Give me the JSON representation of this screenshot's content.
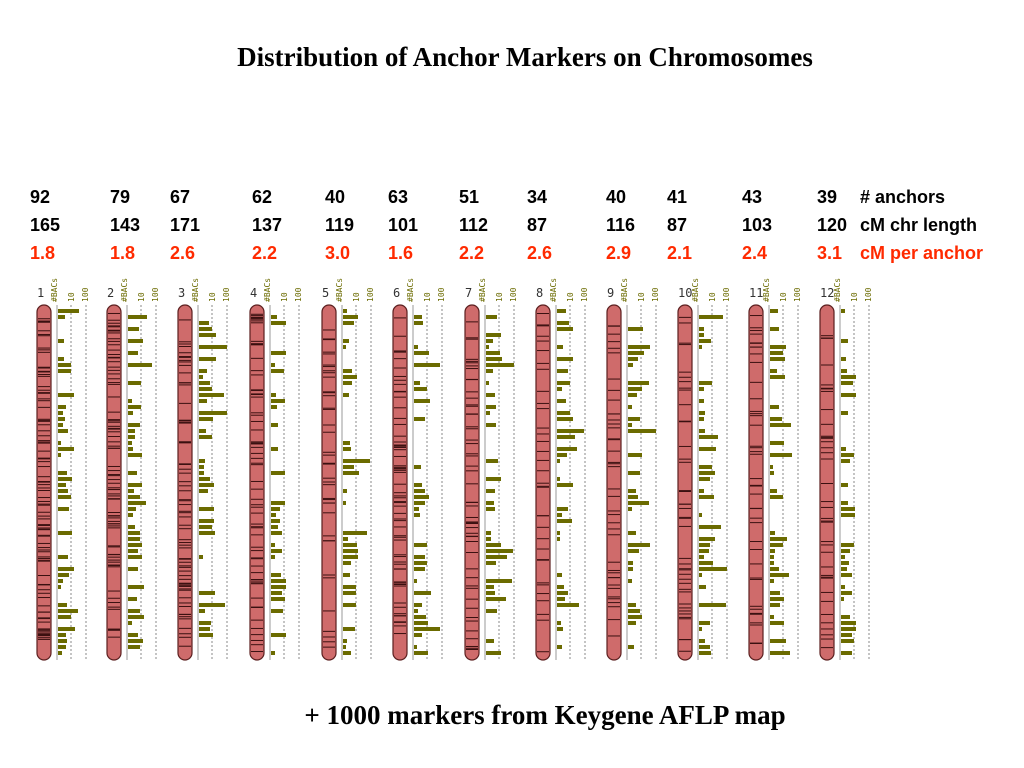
{
  "title": "Distribution of Anchor Markers on Chromosomes",
  "footer": "+ 1000 markers from Keygene AFLP map",
  "legend": {
    "anchors": "# anchors",
    "length": "cM chr length",
    "per_anchor": "cM per anchor"
  },
  "axis_labels": {
    "bacs": "#BACs",
    "t10": "10",
    "t100": "100"
  },
  "colors": {
    "chromosome_fill": "#cf6b6b",
    "chromosome_outline": "#5b1f1f",
    "bar": "#6b6b00",
    "stat_red": "#ff2a00",
    "axis_label": "#6b6b00"
  },
  "chromosomes": [
    {
      "num": "1",
      "anchors": "92",
      "length": "165",
      "per_anchor": "1.8"
    },
    {
      "num": "2",
      "anchors": "79",
      "length": "143",
      "per_anchor": "1.8"
    },
    {
      "num": "3",
      "anchors": "67",
      "length": "171",
      "per_anchor": "2.6"
    },
    {
      "num": "4",
      "anchors": "62",
      "length": "137",
      "per_anchor": "2.2"
    },
    {
      "num": "5",
      "anchors": "40",
      "length": "119",
      "per_anchor": "3.0"
    },
    {
      "num": "6",
      "anchors": "63",
      "length": "101",
      "per_anchor": "1.6"
    },
    {
      "num": "7",
      "anchors": "51",
      "length": "112",
      "per_anchor": "2.2"
    },
    {
      "num": "8",
      "anchors": "34",
      "length": "87",
      "per_anchor": "2.6"
    },
    {
      "num": "9",
      "anchors": "40",
      "length": "116",
      "per_anchor": "2.9"
    },
    {
      "num": "10",
      "anchors": "41",
      "length": "87",
      "per_anchor": "2.1"
    },
    {
      "num": "11",
      "anchors": "43",
      "length": "103",
      "per_anchor": "2.4"
    },
    {
      "num": "12",
      "anchors": "39",
      "length": "120",
      "per_anchor": "3.1"
    }
  ]
}
